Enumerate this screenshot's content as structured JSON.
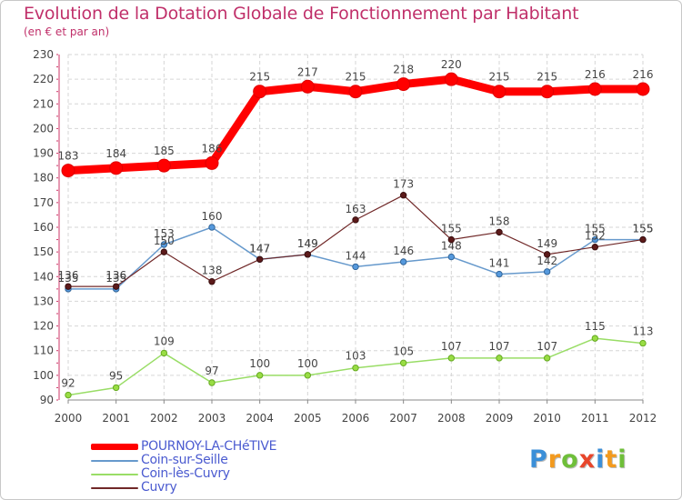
{
  "chart_data": {
    "type": "line",
    "title": "Evolution de la Dotation Globale de Fonctionnement par Habitant",
    "subtitle": "(en € et par an)",
    "xlabel": "",
    "ylabel": "",
    "x": [
      "2000",
      "2001",
      "2002",
      "2003",
      "2004",
      "2005",
      "2006",
      "2007",
      "2008",
      "2009",
      "2010",
      "2011",
      "2012"
    ],
    "ylim": [
      90,
      230
    ],
    "yticks": [
      "90",
      "100",
      "110",
      "120",
      "130",
      "140",
      "150",
      "160",
      "170",
      "180",
      "190",
      "200",
      "210",
      "220",
      "230"
    ],
    "grid": true,
    "legend_position": "bottom-left",
    "series": [
      {
        "name": "POURNOY-LA-CHéTIVE",
        "color": "#ff0000",
        "values": [
          183,
          184,
          185,
          186,
          215,
          217,
          215,
          218,
          220,
          215,
          215,
          216,
          216
        ]
      },
      {
        "name": "Coin-sur-Seille",
        "color": "#6699cc",
        "values": [
          135,
          135,
          153,
          160,
          147,
          149,
          144,
          146,
          148,
          141,
          142,
          155,
          155
        ]
      },
      {
        "name": "Coin-lès-Cuvry",
        "color": "#99dd66",
        "values": [
          92,
          95,
          109,
          97,
          100,
          100,
          103,
          105,
          107,
          107,
          107,
          115,
          113
        ]
      },
      {
        "name": "Cuvry",
        "color": "#702828",
        "values": [
          136,
          136,
          150,
          138,
          147,
          149,
          163,
          173,
          155,
          158,
          149,
          152,
          155
        ]
      }
    ]
  },
  "logo": {
    "letters": [
      "P",
      "r",
      "o",
      "x",
      "i",
      "t",
      "i"
    ],
    "colors": [
      "#3b8fd8",
      "#f39a1e",
      "#6fbf3a",
      "#e8462b",
      "#3b8fd8",
      "#f39a1e",
      "#6fbf3a"
    ]
  }
}
